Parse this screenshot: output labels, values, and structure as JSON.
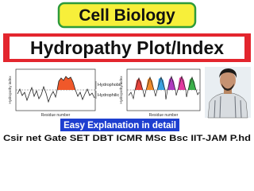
{
  "header": {
    "title": "Cell Biology",
    "subtitle": "Hydropathy Plot/Index"
  },
  "plots": [
    {
      "y_label": "Hydropathy index",
      "x_label": "Residue number",
      "regions": [
        "Hydrophobic",
        "Hydrophilic"
      ]
    },
    {
      "y_label": "Hydropathy index",
      "x_label": "Residue number"
    }
  ],
  "banner": "Easy Explanation in detail",
  "footer": "Csir net Gate SET DBT ICMR MSc Bsc IIT-JAM P.hd"
}
